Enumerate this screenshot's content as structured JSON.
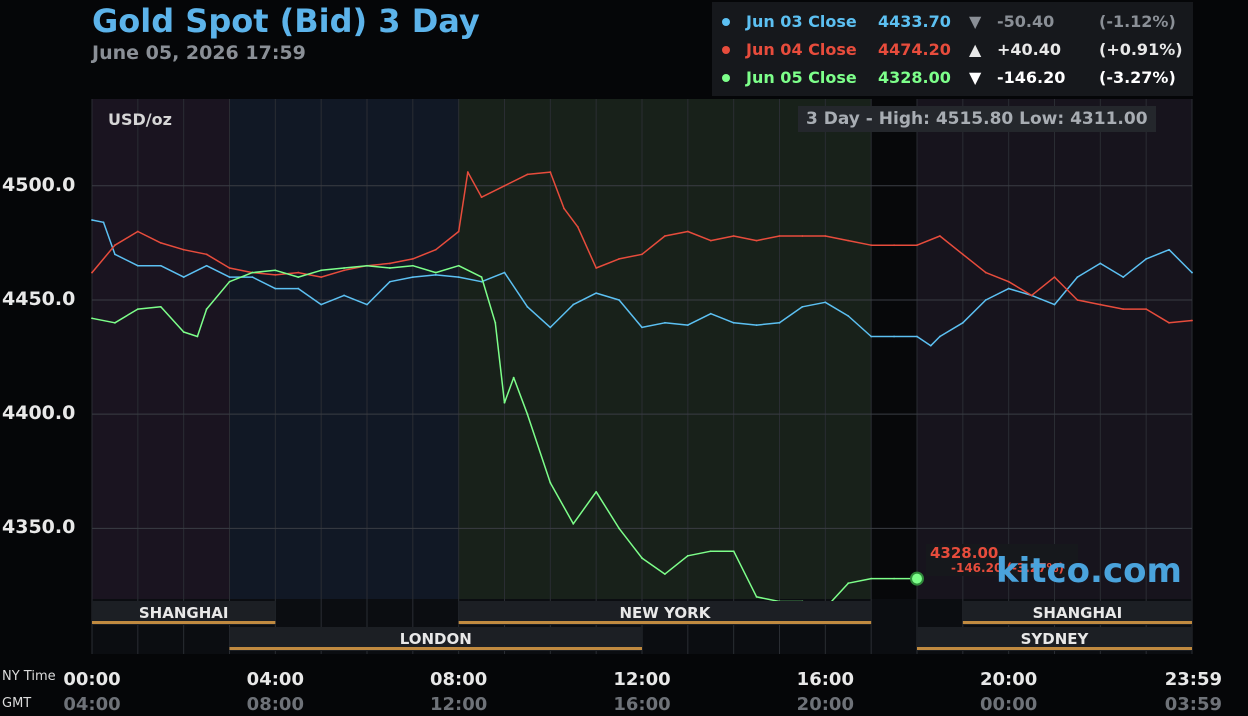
{
  "header": {
    "title": "Gold Spot (Bid) 3 Day",
    "subtitle": "June 05, 2026 17:59"
  },
  "legend": [
    {
      "label": "Jun 03 Close",
      "price": "4433.70",
      "arrow": "▼",
      "change": "-50.40",
      "pct": "(-1.12%)",
      "color": "#5cc0f2",
      "arrow_color": "#8a8f96",
      "change_color": "#8a8f96"
    },
    {
      "label": "Jun 04 Close",
      "price": "4474.20",
      "arrow": "▲",
      "change": "+40.40",
      "pct": "(+0.91%)",
      "color": "#e74c3c",
      "arrow_color": "#e8e8e8",
      "change_color": "#e8e8e8"
    },
    {
      "label": "Jun 05 Close",
      "price": "4328.00",
      "arrow": "▼",
      "change": "-146.20",
      "pct": "(-3.27%)",
      "color": "#7dff8a",
      "arrow_color": "#ffffff",
      "change_color": "#ffffff"
    }
  ],
  "panel": {
    "units": "USD/oz",
    "high_low": "3 Day - High: 4515.80  Low: 4311.00",
    "last_value": "4328.00",
    "last_change": "-146.20 (-3.27%)",
    "watermark": "kitco.com",
    "row_label_ny": "NY Time",
    "row_label_gmt": "GMT"
  },
  "x_ny": [
    "00:00",
    "04:00",
    "08:00",
    "12:00",
    "16:00",
    "20:00",
    "23:59"
  ],
  "x_gmt": [
    "04:00",
    "08:00",
    "12:00",
    "16:00",
    "20:00",
    "00:00",
    "03:59"
  ],
  "sessions": [
    {
      "name": "SHANGHAI",
      "from": 0,
      "to": 4,
      "row": 1
    },
    {
      "name": "NEW YORK",
      "from": 8,
      "to": 17,
      "row": 1
    },
    {
      "name": "SHANGHAI",
      "from": 19,
      "to": 24,
      "row": 1
    },
    {
      "name": "LONDON",
      "from": 3,
      "to": 12,
      "row": 2
    },
    {
      "name": "SYDNEY",
      "from": 18,
      "to": 24,
      "row": 2
    }
  ],
  "chart_data": {
    "type": "line",
    "title": "Gold Spot (Bid) 3 Day",
    "ylabel": "USD/oz",
    "x_unit": "NY time (hours)",
    "xlim": [
      0,
      24
    ],
    "ylim": [
      4295,
      4538
    ],
    "yticks": [
      4350,
      4400,
      4450,
      4500
    ],
    "ytick_labels": [
      "4350.0",
      "4400.0",
      "4450.0",
      "4500.0"
    ],
    "grid": true,
    "series": [
      {
        "name": "Jun 03 Close",
        "color": "#5cc0f2",
        "x": [
          0,
          0.25,
          0.5,
          1,
          1.5,
          2,
          2.5,
          3,
          3.5,
          4,
          4.5,
          5,
          5.5,
          6,
          6.5,
          7,
          7.5,
          8,
          8.5,
          9,
          9.5,
          10,
          10.5,
          11,
          11.5,
          12,
          12.5,
          13,
          13.5,
          14,
          14.5,
          15,
          15.5,
          16,
          16.5,
          17,
          17.5,
          18,
          18.3,
          18.5,
          19,
          19.5,
          20,
          20.5,
          21,
          21.5,
          22,
          22.5,
          23,
          23.5,
          24
        ],
        "y": [
          4485,
          4484,
          4470,
          4465,
          4465,
          4460,
          4465,
          4460,
          4460,
          4455,
          4455,
          4448,
          4452,
          4448,
          4458,
          4460,
          4461,
          4460,
          4458,
          4462,
          4447,
          4438,
          4448,
          4453,
          4450,
          4438,
          4440,
          4439,
          4444,
          4440,
          4439,
          4440,
          4447,
          4449,
          4443,
          4434,
          4434,
          4434,
          4430,
          4434,
          4440,
          4450,
          4455,
          4452,
          4448,
          4460,
          4466,
          4460,
          4468,
          4472,
          4462
        ]
      },
      {
        "name": "Jun 04 Close",
        "color": "#e74c3c",
        "x": [
          0,
          0.5,
          1,
          1.5,
          2,
          2.5,
          3,
          3.5,
          4,
          4.5,
          5,
          5.5,
          6,
          6.5,
          7,
          7.5,
          8,
          8.2,
          8.5,
          9,
          9.5,
          10,
          10.3,
          10.6,
          11,
          11.5,
          12,
          12.5,
          13,
          13.5,
          14,
          14.5,
          15,
          15.5,
          16,
          16.5,
          17,
          17.5,
          18,
          18.5,
          19,
          19.5,
          20,
          20.5,
          21,
          21.5,
          22,
          22.5,
          23,
          23.5,
          24
        ],
        "y": [
          4462,
          4474,
          4480,
          4475,
          4472,
          4470,
          4464,
          4462,
          4461,
          4462,
          4460,
          4463,
          4465,
          4466,
          4468,
          4472,
          4480,
          4506,
          4495,
          4500,
          4505,
          4506,
          4490,
          4482,
          4464,
          4468,
          4470,
          4478,
          4480,
          4476,
          4478,
          4476,
          4478,
          4478,
          4478,
          4476,
          4474,
          4474,
          4474,
          4478,
          4470,
          4462,
          4458,
          4452,
          4460,
          4450,
          4448,
          4446,
          4446,
          4440,
          4441
        ]
      },
      {
        "name": "Jun 05 Close",
        "color": "#7dff8a",
        "x": [
          0,
          0.5,
          1,
          1.5,
          2,
          2.3,
          2.5,
          3,
          3.5,
          4,
          4.5,
          5,
          5.5,
          6,
          6.5,
          7,
          7.5,
          8,
          8.5,
          8.8,
          9,
          9.2,
          9.5,
          10,
          10.5,
          11,
          11.5,
          12,
          12.5,
          13,
          13.5,
          14,
          14.5,
          15,
          15.5,
          16,
          16.5,
          17,
          17.5,
          18
        ],
        "y": [
          4442,
          4440,
          4446,
          4447,
          4436,
          4434,
          4446,
          4458,
          4462,
          4463,
          4460,
          4463,
          4464,
          4465,
          4464,
          4465,
          4462,
          4465,
          4460,
          4440,
          4405,
          4416,
          4400,
          4370,
          4352,
          4366,
          4350,
          4337,
          4330,
          4338,
          4340,
          4340,
          4320,
          4318,
          4318,
          4315,
          4326,
          4328,
          4328,
          4328
        ]
      }
    ]
  }
}
